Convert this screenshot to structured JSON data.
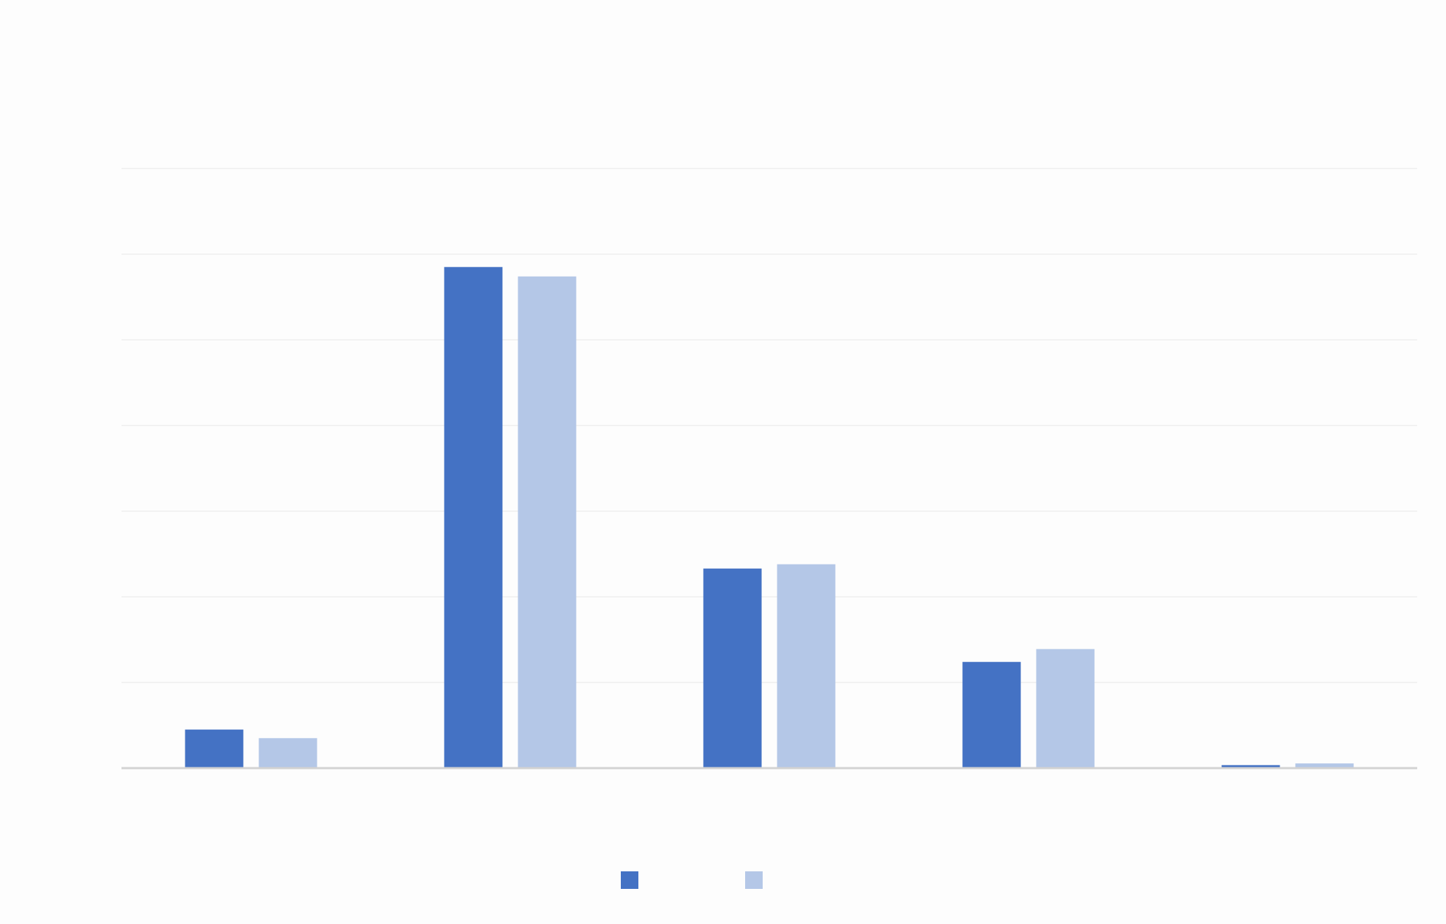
{
  "chart_data": {
    "type": "bar",
    "title": "",
    "xlabel": "",
    "ylabel": "",
    "categories": [
      "",
      "",
      "",
      "",
      ""
    ],
    "series": [
      {
        "color": "#4472c4",
        "values": [
          4.5,
          58.5,
          23.3,
          12.4,
          0.35
        ]
      },
      {
        "color": "#b4c7e7",
        "values": [
          3.5,
          57.4,
          23.8,
          13.9,
          0.55
        ]
      }
    ],
    "ylim": [
      0,
      70
    ],
    "ytick_step": 10,
    "grid": true,
    "legend": "bottom-center"
  }
}
